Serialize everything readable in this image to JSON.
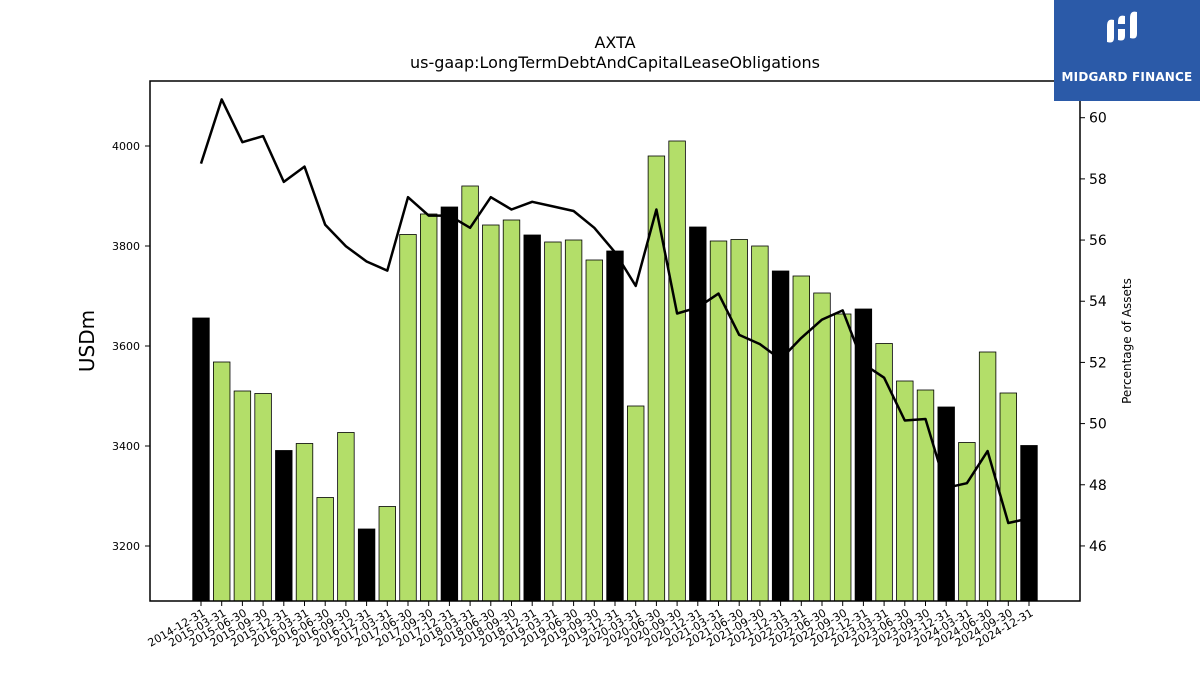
{
  "logo": {
    "text": "MIDGARD FINANCE"
  },
  "chart_data": {
    "type": "bar",
    "title": "AXTA",
    "subtitle": "us-gaap:LongTermDebtAndCapitalLeaseObligations",
    "ylabel": "USDm",
    "ylabel_right": "Percentage of Assets",
    "ylim": [
      3090,
      4130
    ],
    "ylim_right": [
      44.2,
      61.2
    ],
    "yticks": [
      3200,
      3400,
      3600,
      3800,
      4000
    ],
    "yticks_right": [
      46,
      48,
      50,
      52,
      54,
      56,
      58,
      60
    ],
    "categories": [
      "2014-12-31",
      "2015-03-31",
      "2015-06-30",
      "2015-09-30",
      "2015-12-31",
      "2016-03-31",
      "2016-06-30",
      "2016-09-30",
      "2016-12-31",
      "2017-03-31",
      "2017-06-30",
      "2017-09-30",
      "2017-12-31",
      "2018-03-31",
      "2018-06-30",
      "2018-09-30",
      "2018-12-31",
      "2019-03-31",
      "2019-06-30",
      "2019-09-30",
      "2019-12-31",
      "2020-03-31",
      "2020-06-30",
      "2020-09-30",
      "2020-12-31",
      "2021-03-31",
      "2021-06-30",
      "2021-09-30",
      "2021-12-31",
      "2022-03-31",
      "2022-06-30",
      "2022-09-30",
      "2022-12-31",
      "2023-03-31",
      "2023-06-30",
      "2023-09-30",
      "2023-12-31",
      "2024-03-31",
      "2024-06-30",
      "2024-09-30",
      "2024-12-31"
    ],
    "series": [
      {
        "type": "bar",
        "values": [
          3656,
          3568,
          3510,
          3505,
          3391,
          3405,
          3297,
          3427,
          3234,
          3279,
          3823,
          3864,
          3878,
          3920,
          3842,
          3852,
          3822,
          3808,
          3812,
          3772,
          3790,
          3480,
          3980,
          4010,
          3838,
          3810,
          3813,
          3800,
          3750,
          3740,
          3706,
          3664,
          3674,
          3605,
          3530,
          3512,
          3478,
          3407,
          3588,
          3506,
          3401
        ],
        "colors": [
          "#000000",
          "#b3de69",
          "#b3de69",
          "#b3de69",
          "#000000",
          "#b3de69",
          "#b3de69",
          "#b3de69",
          "#000000",
          "#b3de69",
          "#b3de69",
          "#b3de69",
          "#000000",
          "#b3de69",
          "#b3de69",
          "#b3de69",
          "#000000",
          "#b3de69",
          "#b3de69",
          "#b3de69",
          "#000000",
          "#b3de69",
          "#b3de69",
          "#b3de69",
          "#000000",
          "#b3de69",
          "#b3de69",
          "#b3de69",
          "#000000",
          "#b3de69",
          "#b3de69",
          "#b3de69",
          "#000000",
          "#b3de69",
          "#b3de69",
          "#b3de69",
          "#000000",
          "#b3de69",
          "#b3de69",
          "#b3de69",
          "#000000"
        ]
      },
      {
        "type": "line",
        "axis": "right",
        "color": "#000000",
        "values": [
          58.5,
          60.6,
          59.2,
          59.4,
          57.9,
          58.4,
          56.5,
          55.8,
          55.3,
          55.0,
          57.4,
          56.8,
          56.8,
          56.4,
          57.4,
          57.0,
          57.25,
          57.1,
          56.95,
          56.4,
          55.6,
          54.5,
          57.0,
          53.6,
          53.8,
          54.25,
          52.9,
          52.6,
          52.1,
          52.8,
          53.4,
          53.7,
          51.95,
          51.5,
          50.1,
          50.15,
          47.9,
          48.05,
          49.1,
          46.75,
          46.9
        ]
      }
    ],
    "grid": false
  }
}
